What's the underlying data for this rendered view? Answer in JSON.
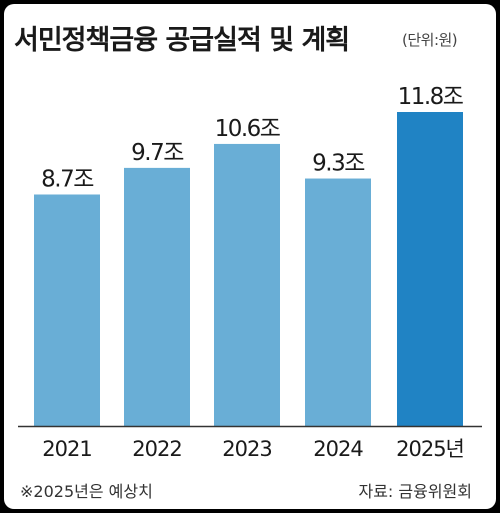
{
  "title": "서민정책금융 공급실적 및 계획",
  "unit": "(단위:원)",
  "footnote": "※2025년은 예상치",
  "source": "자료: 금융위원회",
  "colors": {
    "bar_actual": "#69aed6",
    "bar_forecast": "#2083c4",
    "axis": "#333333"
  },
  "chart_data": {
    "type": "bar",
    "title": "서민정책금융 공급실적 및 계획",
    "categories": [
      "2021",
      "2022",
      "2023",
      "2024",
      "2025년"
    ],
    "values": [
      8.7,
      9.7,
      10.6,
      9.3,
      11.8
    ],
    "data_labels": [
      "8.7조",
      "9.7조",
      "10.6조",
      "9.3조",
      "11.8조"
    ],
    "forecast_index": 4,
    "xlabel": "",
    "ylabel": "",
    "ylim": [
      0,
      11.8
    ],
    "grid": false,
    "legend": "none"
  }
}
